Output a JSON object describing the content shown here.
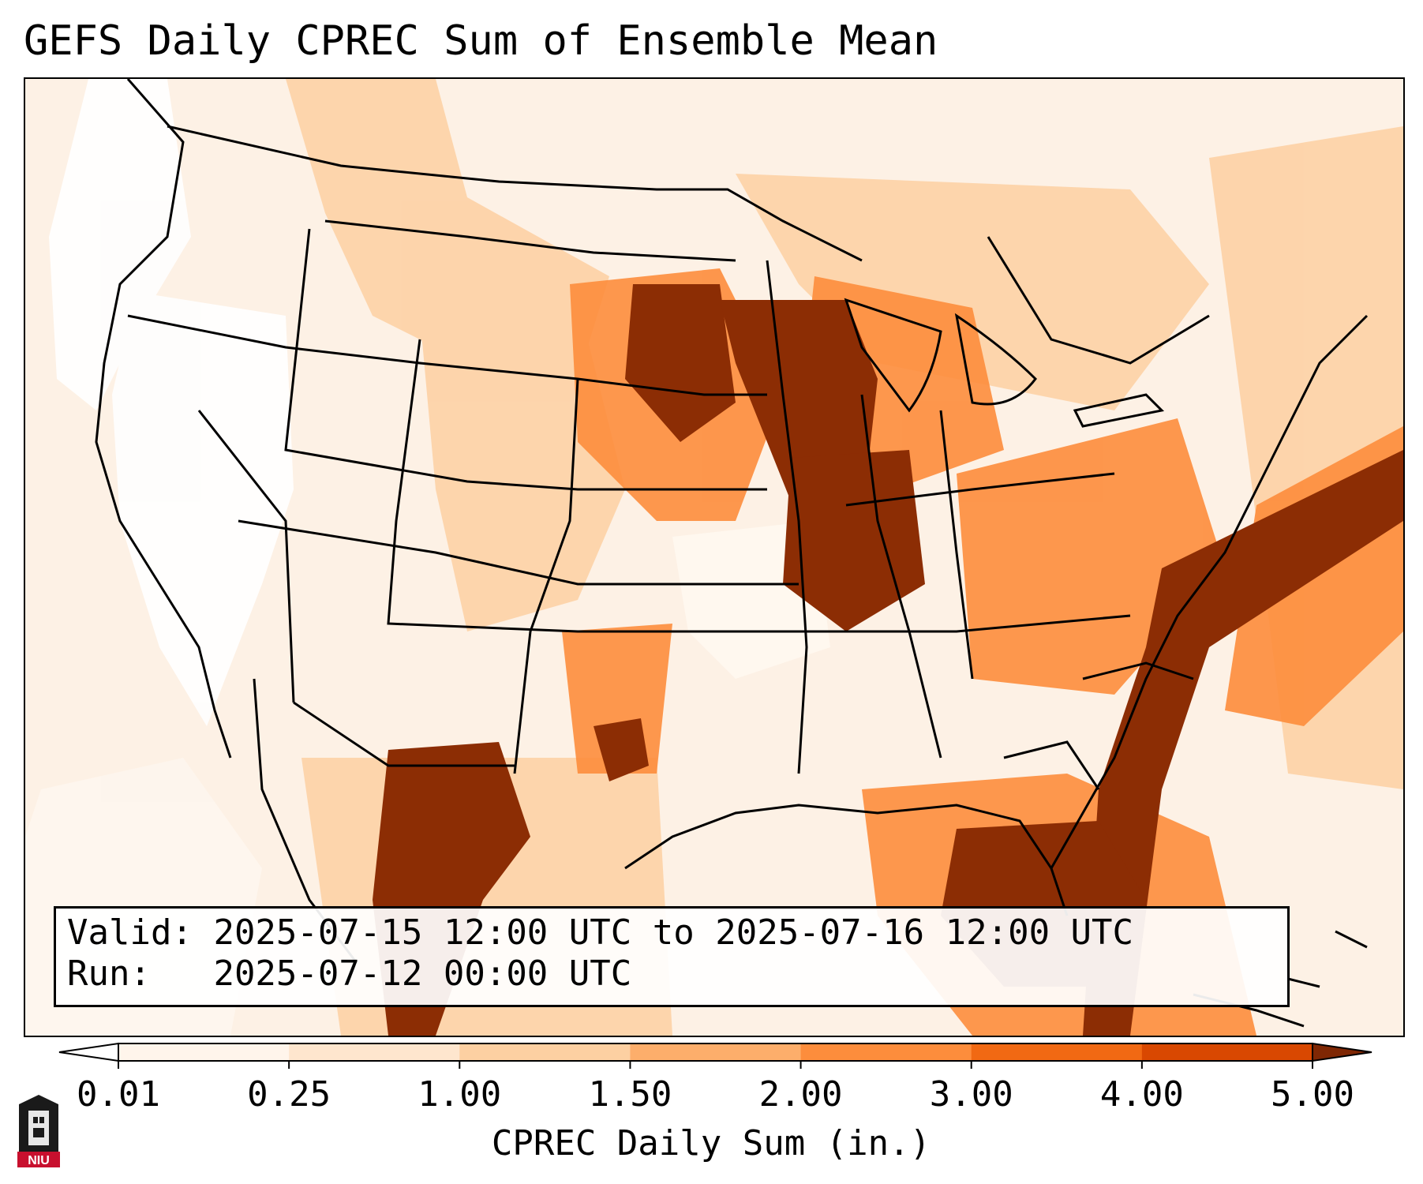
{
  "title": "GEFS Daily CPREC Sum of Ensemble Mean",
  "info": {
    "valid_label": "Valid:",
    "valid_value": "2025-07-15 12:00 UTC to 2025-07-16 12:00 UTC",
    "run_label": "Run:",
    "run_value": "2025-07-12 00:00 UTC"
  },
  "colorbar": {
    "label": "CPREC Daily Sum (in.)",
    "ticks": [
      "0.01",
      "0.25",
      "1.00",
      "1.50",
      "2.00",
      "3.00",
      "4.00",
      "5.00"
    ],
    "colors": [
      "#fff5eb",
      "#fee6ce",
      "#fdd0a2",
      "#fdae6b",
      "#fd8d3c",
      "#f16913",
      "#d94801",
      "#8c2d04"
    ],
    "under_color": "#ffffff",
    "over_color": "#7f2704"
  },
  "logo": {
    "text": "NIU",
    "primary_color": "#c8102e"
  }
}
